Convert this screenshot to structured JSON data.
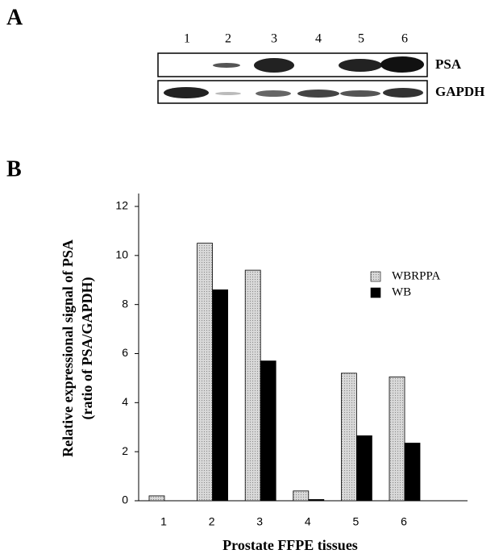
{
  "panel_a": {
    "label": "A",
    "lanes": [
      "1",
      "2",
      "3",
      "4",
      "5",
      "6"
    ],
    "rows": [
      "PSA",
      "GAPDH"
    ]
  },
  "panel_b_label": "B",
  "chart_data": {
    "type": "bar",
    "ylabel": [
      "Relative expressional signal of PSA",
      "(ratio of PSA/GAPDH)"
    ],
    "xlabel": "Prostate FFPE tissues",
    "categories": [
      "1",
      "2",
      "3",
      "4",
      "5",
      "6"
    ],
    "series": [
      {
        "name": "WBRPPA",
        "color": "#d9d9d9",
        "values": [
          0.2,
          10.5,
          9.4,
          0.4,
          5.2,
          5.05
        ]
      },
      {
        "name": "WB",
        "color": "#000000",
        "values": [
          0,
          8.6,
          5.7,
          0.05,
          2.65,
          2.35
        ]
      }
    ],
    "ylim": [
      0,
      12
    ],
    "yticks": [
      0,
      2,
      4,
      6,
      8,
      10,
      12
    ],
    "legend": "right"
  }
}
